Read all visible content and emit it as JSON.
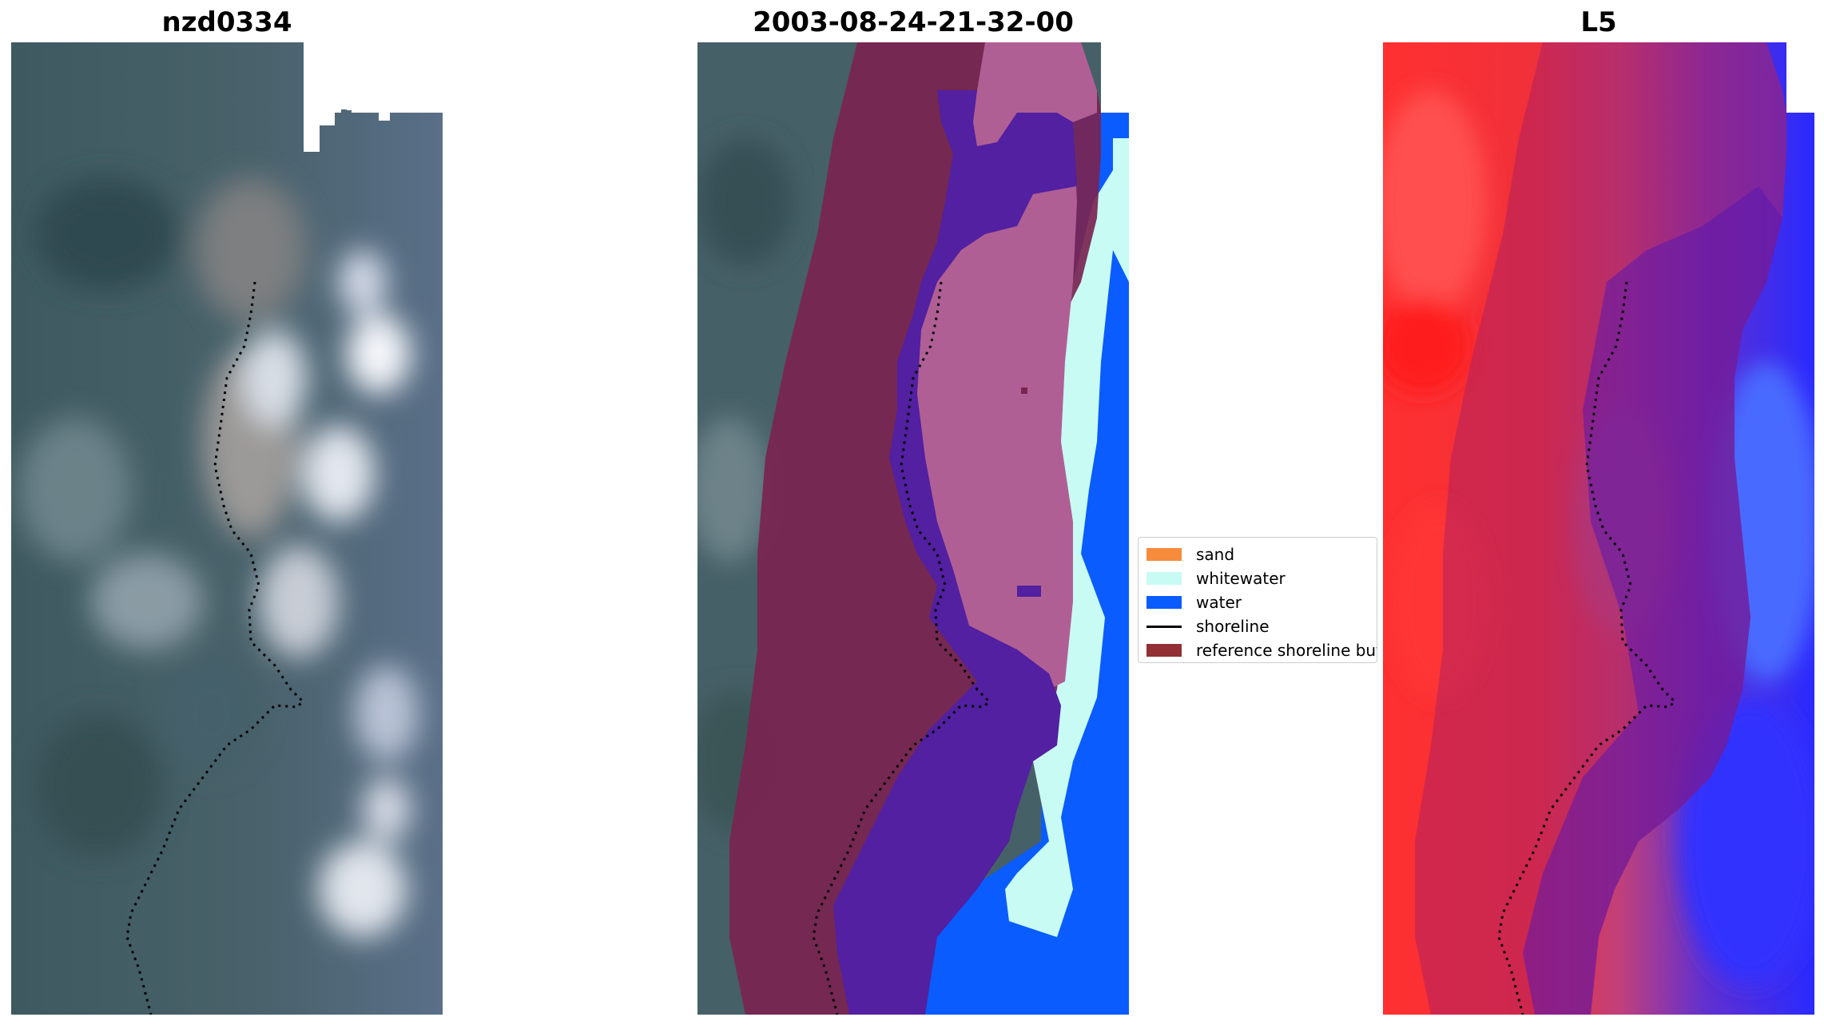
{
  "panels": {
    "left_title": "nzd0334",
    "middle_title": "2003-08-24-21-32-00",
    "right_title": "L5"
  },
  "legend": {
    "items": [
      {
        "label": "sand",
        "color": "#f68b3c",
        "kind": "patch"
      },
      {
        "label": "whitewater",
        "color": "#c8fbf4",
        "kind": "patch"
      },
      {
        "label": "water",
        "color": "#0a5cff",
        "kind": "patch"
      },
      {
        "label": "shoreline",
        "color": "#000000",
        "kind": "line"
      },
      {
        "label": "reference shoreline buf",
        "color": "#922f35",
        "kind": "patch"
      }
    ]
  },
  "colors": {
    "buffer": "#7a2450",
    "sand_class": "#b05f95",
    "dark_sand": "#5220a0",
    "water": "#0a5cff",
    "whitewater": "#c8fbf4",
    "probability_land": "#ff2a2a",
    "probability_water": "#2a2aff"
  }
}
